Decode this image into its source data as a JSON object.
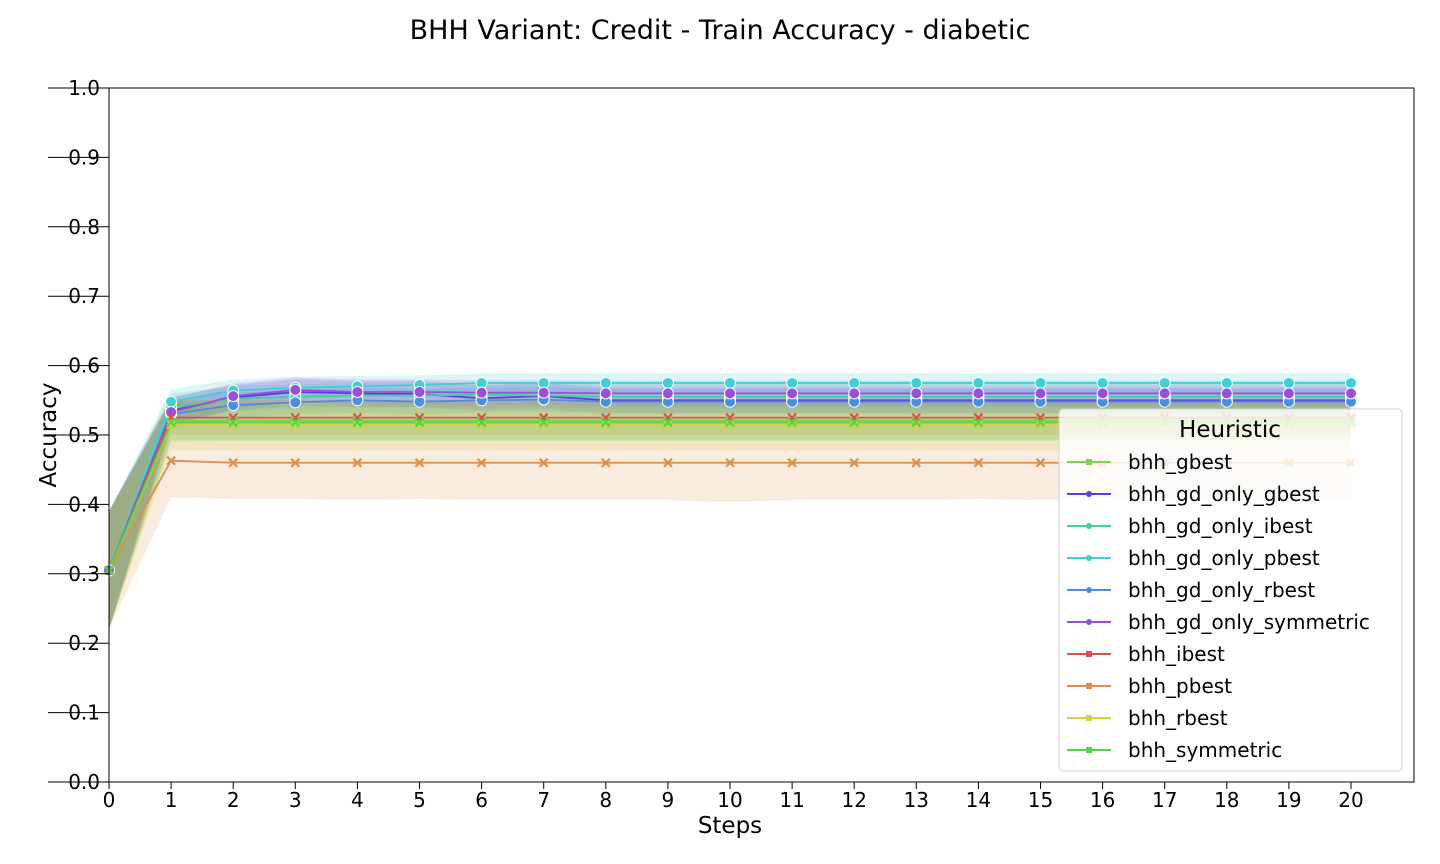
{
  "chart_data": {
    "type": "line",
    "title": "BHH Variant: Credit - Train Accuracy - diabetic",
    "xlabel": "Steps",
    "ylabel": "Accuracy",
    "xlim": [
      0,
      21
    ],
    "ylim": [
      0.0,
      1.0
    ],
    "x": [
      0,
      1,
      2,
      3,
      4,
      5,
      6,
      7,
      8,
      9,
      10,
      11,
      12,
      13,
      14,
      15,
      16,
      17,
      18,
      19,
      20
    ],
    "xticks": [
      "0",
      "1",
      "2",
      "3",
      "4",
      "5",
      "6",
      "7",
      "8",
      "9",
      "10",
      "11",
      "12",
      "13",
      "14",
      "15",
      "16",
      "17",
      "18",
      "19",
      "20"
    ],
    "yticks": [
      "0.0",
      "0.1",
      "0.2",
      "0.3",
      "0.4",
      "0.5",
      "0.6",
      "0.7",
      "0.8",
      "0.9",
      "1.0"
    ],
    "grid": false,
    "legend": {
      "title": "Heuristic",
      "placement": "right"
    },
    "series": [
      {
        "name": "bhh_gbest",
        "color": "#7ed348",
        "marker": "x",
        "values": [
          0.305,
          0.52,
          0.521,
          0.521,
          0.521,
          0.521,
          0.521,
          0.521,
          0.521,
          0.521,
          0.521,
          0.521,
          0.521,
          0.521,
          0.521,
          0.521,
          0.521,
          0.521,
          0.521,
          0.521,
          0.521
        ],
        "lower": [
          0.22,
          0.49,
          0.492,
          0.492,
          0.492,
          0.492,
          0.492,
          0.492,
          0.492,
          0.492,
          0.492,
          0.492,
          0.492,
          0.492,
          0.492,
          0.492,
          0.492,
          0.492,
          0.492,
          0.492,
          0.492
        ],
        "upper": [
          0.39,
          0.548,
          0.55,
          0.55,
          0.55,
          0.55,
          0.55,
          0.55,
          0.55,
          0.55,
          0.55,
          0.55,
          0.55,
          0.55,
          0.55,
          0.55,
          0.55,
          0.55,
          0.55,
          0.55,
          0.55
        ]
      },
      {
        "name": "bhh_gd_only_gbest",
        "color": "#5a3fdc",
        "marker": "o",
        "values": [
          0.305,
          0.535,
          0.554,
          0.562,
          0.56,
          0.559,
          0.553,
          0.556,
          0.55,
          0.55,
          0.55,
          0.55,
          0.55,
          0.55,
          0.55,
          0.55,
          0.55,
          0.55,
          0.55,
          0.55,
          0.55
        ],
        "lower": [
          0.22,
          0.515,
          0.535,
          0.542,
          0.54,
          0.54,
          0.535,
          0.537,
          0.532,
          0.532,
          0.532,
          0.532,
          0.532,
          0.532,
          0.532,
          0.532,
          0.532,
          0.532,
          0.532,
          0.532,
          0.532
        ],
        "upper": [
          0.39,
          0.555,
          0.572,
          0.58,
          0.578,
          0.578,
          0.571,
          0.575,
          0.568,
          0.568,
          0.568,
          0.568,
          0.568,
          0.568,
          0.568,
          0.568,
          0.568,
          0.568,
          0.568,
          0.568,
          0.568
        ]
      },
      {
        "name": "bhh_gd_only_ibest",
        "color": "#3dd495",
        "marker": "o",
        "values": [
          0.305,
          0.54,
          0.552,
          0.555,
          0.557,
          0.557,
          0.558,
          0.557,
          0.555,
          0.555,
          0.555,
          0.555,
          0.555,
          0.555,
          0.555,
          0.555,
          0.555,
          0.555,
          0.555,
          0.555,
          0.555
        ],
        "lower": [
          0.22,
          0.52,
          0.534,
          0.537,
          0.54,
          0.54,
          0.54,
          0.54,
          0.538,
          0.538,
          0.538,
          0.538,
          0.538,
          0.538,
          0.538,
          0.538,
          0.538,
          0.538,
          0.538,
          0.538,
          0.538
        ],
        "upper": [
          0.39,
          0.56,
          0.57,
          0.573,
          0.575,
          0.575,
          0.576,
          0.575,
          0.573,
          0.573,
          0.573,
          0.573,
          0.573,
          0.573,
          0.573,
          0.573,
          0.573,
          0.573,
          0.573,
          0.573,
          0.573
        ]
      },
      {
        "name": "bhh_gd_only_pbest",
        "color": "#3fcfd4",
        "marker": "o",
        "values": [
          0.305,
          0.548,
          0.564,
          0.568,
          0.57,
          0.572,
          0.575,
          0.575,
          0.575,
          0.575,
          0.575,
          0.575,
          0.575,
          0.575,
          0.575,
          0.575,
          0.575,
          0.575,
          0.575,
          0.575,
          0.575
        ],
        "lower": [
          0.22,
          0.53,
          0.548,
          0.552,
          0.555,
          0.558,
          0.561,
          0.561,
          0.561,
          0.561,
          0.561,
          0.561,
          0.561,
          0.561,
          0.561,
          0.561,
          0.561,
          0.561,
          0.561,
          0.561,
          0.561
        ],
        "upper": [
          0.39,
          0.566,
          0.58,
          0.584,
          0.585,
          0.586,
          0.589,
          0.589,
          0.589,
          0.589,
          0.589,
          0.589,
          0.589,
          0.589,
          0.589,
          0.589,
          0.589,
          0.589,
          0.589,
          0.589,
          0.589
        ]
      },
      {
        "name": "bhh_gd_only_rbest",
        "color": "#4a8fdc",
        "marker": "o",
        "values": [
          0.305,
          0.53,
          0.543,
          0.547,
          0.55,
          0.548,
          0.55,
          0.551,
          0.548,
          0.548,
          0.548,
          0.548,
          0.548,
          0.548,
          0.548,
          0.548,
          0.548,
          0.548,
          0.548,
          0.548,
          0.548
        ],
        "lower": [
          0.22,
          0.51,
          0.525,
          0.53,
          0.532,
          0.53,
          0.532,
          0.533,
          0.53,
          0.53,
          0.53,
          0.53,
          0.53,
          0.53,
          0.53,
          0.53,
          0.53,
          0.53,
          0.53,
          0.53,
          0.53
        ],
        "upper": [
          0.39,
          0.55,
          0.561,
          0.565,
          0.568,
          0.566,
          0.568,
          0.569,
          0.566,
          0.566,
          0.566,
          0.566,
          0.566,
          0.566,
          0.566,
          0.566,
          0.566,
          0.566,
          0.566,
          0.566,
          0.566
        ]
      },
      {
        "name": "bhh_gd_only_symmetric",
        "color": "#9a4fdc",
        "marker": "o",
        "values": [
          0.305,
          0.533,
          0.556,
          0.565,
          0.562,
          0.562,
          0.561,
          0.561,
          0.56,
          0.56,
          0.56,
          0.56,
          0.56,
          0.56,
          0.56,
          0.56,
          0.56,
          0.56,
          0.56,
          0.56,
          0.56
        ],
        "lower": [
          0.22,
          0.513,
          0.538,
          0.547,
          0.544,
          0.544,
          0.543,
          0.543,
          0.542,
          0.542,
          0.542,
          0.542,
          0.542,
          0.542,
          0.542,
          0.542,
          0.542,
          0.542,
          0.542,
          0.542,
          0.542
        ],
        "upper": [
          0.39,
          0.553,
          0.574,
          0.583,
          0.58,
          0.58,
          0.579,
          0.579,
          0.578,
          0.578,
          0.578,
          0.578,
          0.578,
          0.578,
          0.578,
          0.578,
          0.578,
          0.578,
          0.578,
          0.578,
          0.578
        ]
      },
      {
        "name": "bhh_ibest",
        "color": "#dc4f4a",
        "marker": "x",
        "values": [
          0.305,
          0.525,
          0.525,
          0.525,
          0.525,
          0.525,
          0.525,
          0.525,
          0.525,
          0.525,
          0.525,
          0.525,
          0.525,
          0.525,
          0.525,
          0.525,
          0.525,
          0.525,
          0.525,
          0.525,
          0.525
        ],
        "lower": [
          0.22,
          0.5,
          0.5,
          0.5,
          0.5,
          0.5,
          0.5,
          0.5,
          0.5,
          0.5,
          0.5,
          0.5,
          0.5,
          0.5,
          0.5,
          0.5,
          0.5,
          0.5,
          0.5,
          0.5,
          0.5
        ],
        "upper": [
          0.39,
          0.55,
          0.55,
          0.55,
          0.55,
          0.55,
          0.55,
          0.55,
          0.55,
          0.55,
          0.55,
          0.55,
          0.55,
          0.55,
          0.55,
          0.55,
          0.55,
          0.55,
          0.55,
          0.55,
          0.55
        ]
      },
      {
        "name": "bhh_pbest",
        "color": "#dc8f4a",
        "marker": "x",
        "values": [
          0.305,
          0.463,
          0.46,
          0.46,
          0.46,
          0.46,
          0.46,
          0.46,
          0.46,
          0.46,
          0.46,
          0.46,
          0.46,
          0.46,
          0.46,
          0.46,
          0.46,
          0.46,
          0.46,
          0.46,
          0.46
        ],
        "lower": [
          0.22,
          0.41,
          0.408,
          0.408,
          0.406,
          0.408,
          0.406,
          0.406,
          0.406,
          0.406,
          0.403,
          0.406,
          0.406,
          0.406,
          0.408,
          0.406,
          0.406,
          0.406,
          0.406,
          0.406,
          0.406
        ],
        "upper": [
          0.39,
          0.516,
          0.512,
          0.512,
          0.514,
          0.512,
          0.514,
          0.514,
          0.514,
          0.514,
          0.517,
          0.514,
          0.514,
          0.514,
          0.512,
          0.514,
          0.514,
          0.514,
          0.514,
          0.514,
          0.514
        ]
      },
      {
        "name": "bhh_rbest",
        "color": "#cfd43f",
        "marker": "x",
        "values": [
          0.305,
          0.515,
          0.515,
          0.515,
          0.515,
          0.515,
          0.515,
          0.515,
          0.515,
          0.515,
          0.515,
          0.515,
          0.515,
          0.515,
          0.515,
          0.515,
          0.515,
          0.515,
          0.515,
          0.515,
          0.515
        ],
        "lower": [
          0.22,
          0.478,
          0.478,
          0.478,
          0.478,
          0.478,
          0.478,
          0.478,
          0.478,
          0.478,
          0.478,
          0.478,
          0.478,
          0.478,
          0.478,
          0.478,
          0.478,
          0.478,
          0.478,
          0.478,
          0.478
        ],
        "upper": [
          0.39,
          0.552,
          0.552,
          0.552,
          0.552,
          0.552,
          0.552,
          0.552,
          0.552,
          0.552,
          0.552,
          0.552,
          0.552,
          0.552,
          0.552,
          0.552,
          0.552,
          0.552,
          0.552,
          0.552,
          0.552
        ]
      },
      {
        "name": "bhh_symmetric",
        "color": "#4fd44a",
        "marker": "x",
        "values": [
          0.305,
          0.518,
          0.518,
          0.518,
          0.518,
          0.518,
          0.518,
          0.518,
          0.518,
          0.518,
          0.518,
          0.518,
          0.518,
          0.518,
          0.518,
          0.518,
          0.518,
          0.518,
          0.518,
          0.518,
          0.518
        ],
        "lower": [
          0.22,
          0.492,
          0.492,
          0.492,
          0.492,
          0.492,
          0.492,
          0.492,
          0.492,
          0.492,
          0.492,
          0.492,
          0.492,
          0.492,
          0.492,
          0.492,
          0.492,
          0.492,
          0.492,
          0.492,
          0.492
        ],
        "upper": [
          0.39,
          0.544,
          0.544,
          0.544,
          0.544,
          0.544,
          0.544,
          0.544,
          0.544,
          0.544,
          0.544,
          0.544,
          0.544,
          0.544,
          0.544,
          0.544,
          0.544,
          0.544,
          0.544,
          0.544,
          0.544
        ]
      }
    ]
  }
}
